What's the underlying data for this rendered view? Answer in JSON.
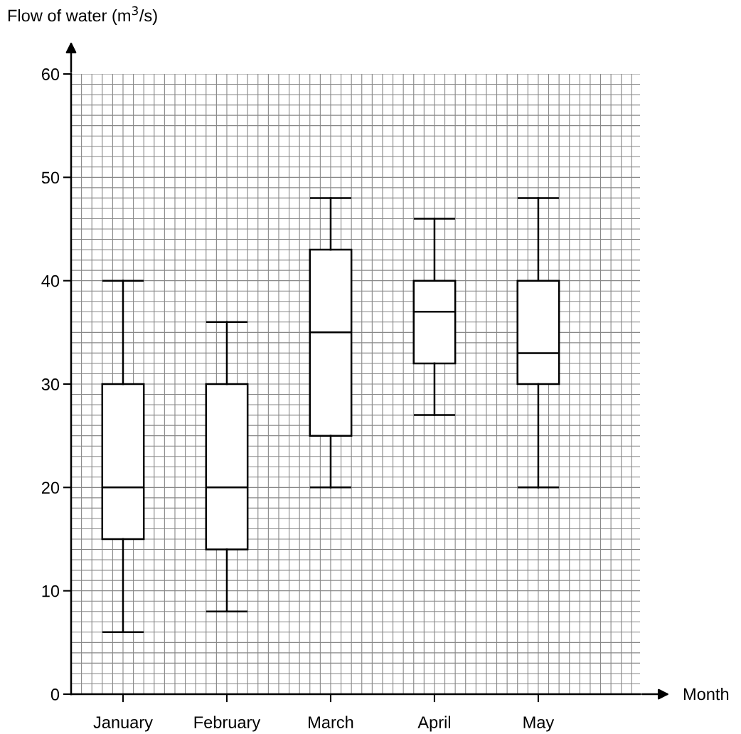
{
  "chart_data": {
    "type": "box",
    "ylabel": "Flow of water (m$^{3}$/s)",
    "xlabel": "Month",
    "categories": [
      "January",
      "February",
      "March",
      "April",
      "May"
    ],
    "boxes": [
      {
        "low": 6,
        "q1": 15,
        "median": 20,
        "q3": 30,
        "high": 40
      },
      {
        "low": 8,
        "q1": 14,
        "median": 20,
        "q3": 30,
        "high": 36
      },
      {
        "low": 20,
        "q1": 25,
        "median": 35,
        "q3": 43,
        "high": 48
      },
      {
        "low": 27,
        "q1": 32,
        "median": 37,
        "q3": 40,
        "high": 46
      },
      {
        "low": 20,
        "q1": 30,
        "median": 33,
        "q3": 40,
        "high": 48
      }
    ],
    "ylim": [
      0,
      60
    ],
    "yticks": [
      0,
      10,
      20,
      30,
      40,
      50,
      60
    ],
    "grid": true
  }
}
